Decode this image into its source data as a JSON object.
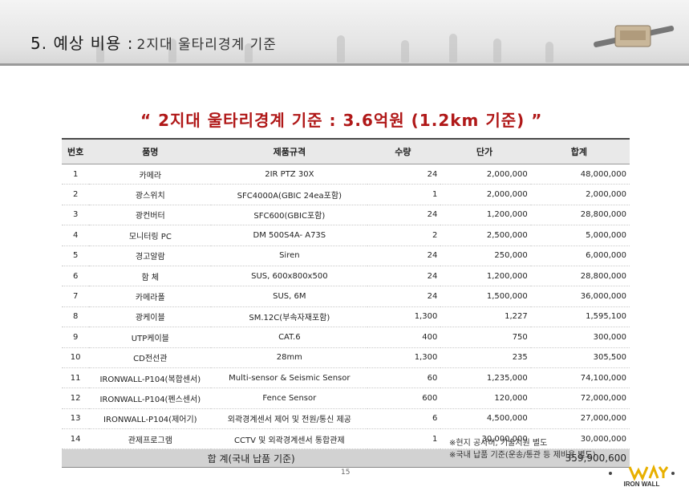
{
  "header": {
    "title": "5. 예상 비용 :",
    "subtitle": "2지대 울타리경계 기준"
  },
  "headline": "“ 2지대 울타리경계 기준 : 3.6억원 (1.2km 기준) ”",
  "table": {
    "columns": {
      "no": "번호",
      "name": "품명",
      "spec": "제품규격",
      "qty": "수량",
      "price": "단가",
      "total": "합계"
    },
    "rows": [
      {
        "no": "1",
        "name": "카메라",
        "spec": "2IR PTZ 30X",
        "qty": "24",
        "price": "2,000,000",
        "total": "48,000,000"
      },
      {
        "no": "2",
        "name": "광스위치",
        "spec": "SFC4000A(GBIC 24ea포함)",
        "qty": "1",
        "price": "2,000,000",
        "total": "2,000,000"
      },
      {
        "no": "3",
        "name": "광컨버터",
        "spec": "SFC600(GBIC포함)",
        "qty": "24",
        "price": "1,200,000",
        "total": "28,800,000"
      },
      {
        "no": "4",
        "name": "모니터링 PC",
        "spec": "DM 500S4A- A73S",
        "qty": "2",
        "price": "2,500,000",
        "total": "5,000,000"
      },
      {
        "no": "5",
        "name": "경고알람",
        "spec": "Siren",
        "qty": "24",
        "price": "250,000",
        "total": "6,000,000"
      },
      {
        "no": "6",
        "name": "함 체",
        "spec": "SUS, 600x800x500",
        "qty": "24",
        "price": "1,200,000",
        "total": "28,800,000"
      },
      {
        "no": "7",
        "name": "카메라폴",
        "spec": "SUS, 6M",
        "qty": "24",
        "price": "1,500,000",
        "total": "36,000,000"
      },
      {
        "no": "8",
        "name": "광케이블",
        "spec": "SM.12C(부속자재포함)",
        "qty": "1,300",
        "price": "1,227",
        "total": "1,595,100"
      },
      {
        "no": "9",
        "name": "UTP케이블",
        "spec": "CAT.6",
        "qty": "400",
        "price": "750",
        "total": "300,000"
      },
      {
        "no": "10",
        "name": "CD전선관",
        "spec": "28mm",
        "qty": "1,300",
        "price": "235",
        "total": "305,500"
      },
      {
        "no": "11",
        "name": "IRONWALL-P104(복합센서)",
        "spec": "Multi-sensor & Seismic Sensor",
        "qty": "60",
        "price": "1,235,000",
        "total": "74,100,000"
      },
      {
        "no": "12",
        "name": "IRONWALL-P104(펜스센서)",
        "spec": "Fence Sensor",
        "qty": "600",
        "price": "120,000",
        "total": "72,000,000"
      },
      {
        "no": "13",
        "name": "IRONWALL-P104(제어기)",
        "spec": "외곽경계센서 제어 및 전원/통신 제공",
        "qty": "6",
        "price": "4,500,000",
        "total": "27,000,000"
      },
      {
        "no": "14",
        "name": "관제프로그램",
        "spec": "CCTV 및 외곽경계센서 통합관제",
        "qty": "1",
        "price": "30,000,000",
        "total": "30,000,000"
      }
    ],
    "total_label": "합 계(국내 납품 기준)",
    "total_value": "359,900,600"
  },
  "notes": [
    "※현지 공사비, 기술지원 별도",
    "※국내 납품 기준(운송/통관 등 제비용 별도)"
  ],
  "page_number": "15",
  "logo_text": "IRON WALL",
  "colors": {
    "headline": "#b01818",
    "header_band": "#e4e4e4",
    "total_row": "#d2d2d2"
  }
}
